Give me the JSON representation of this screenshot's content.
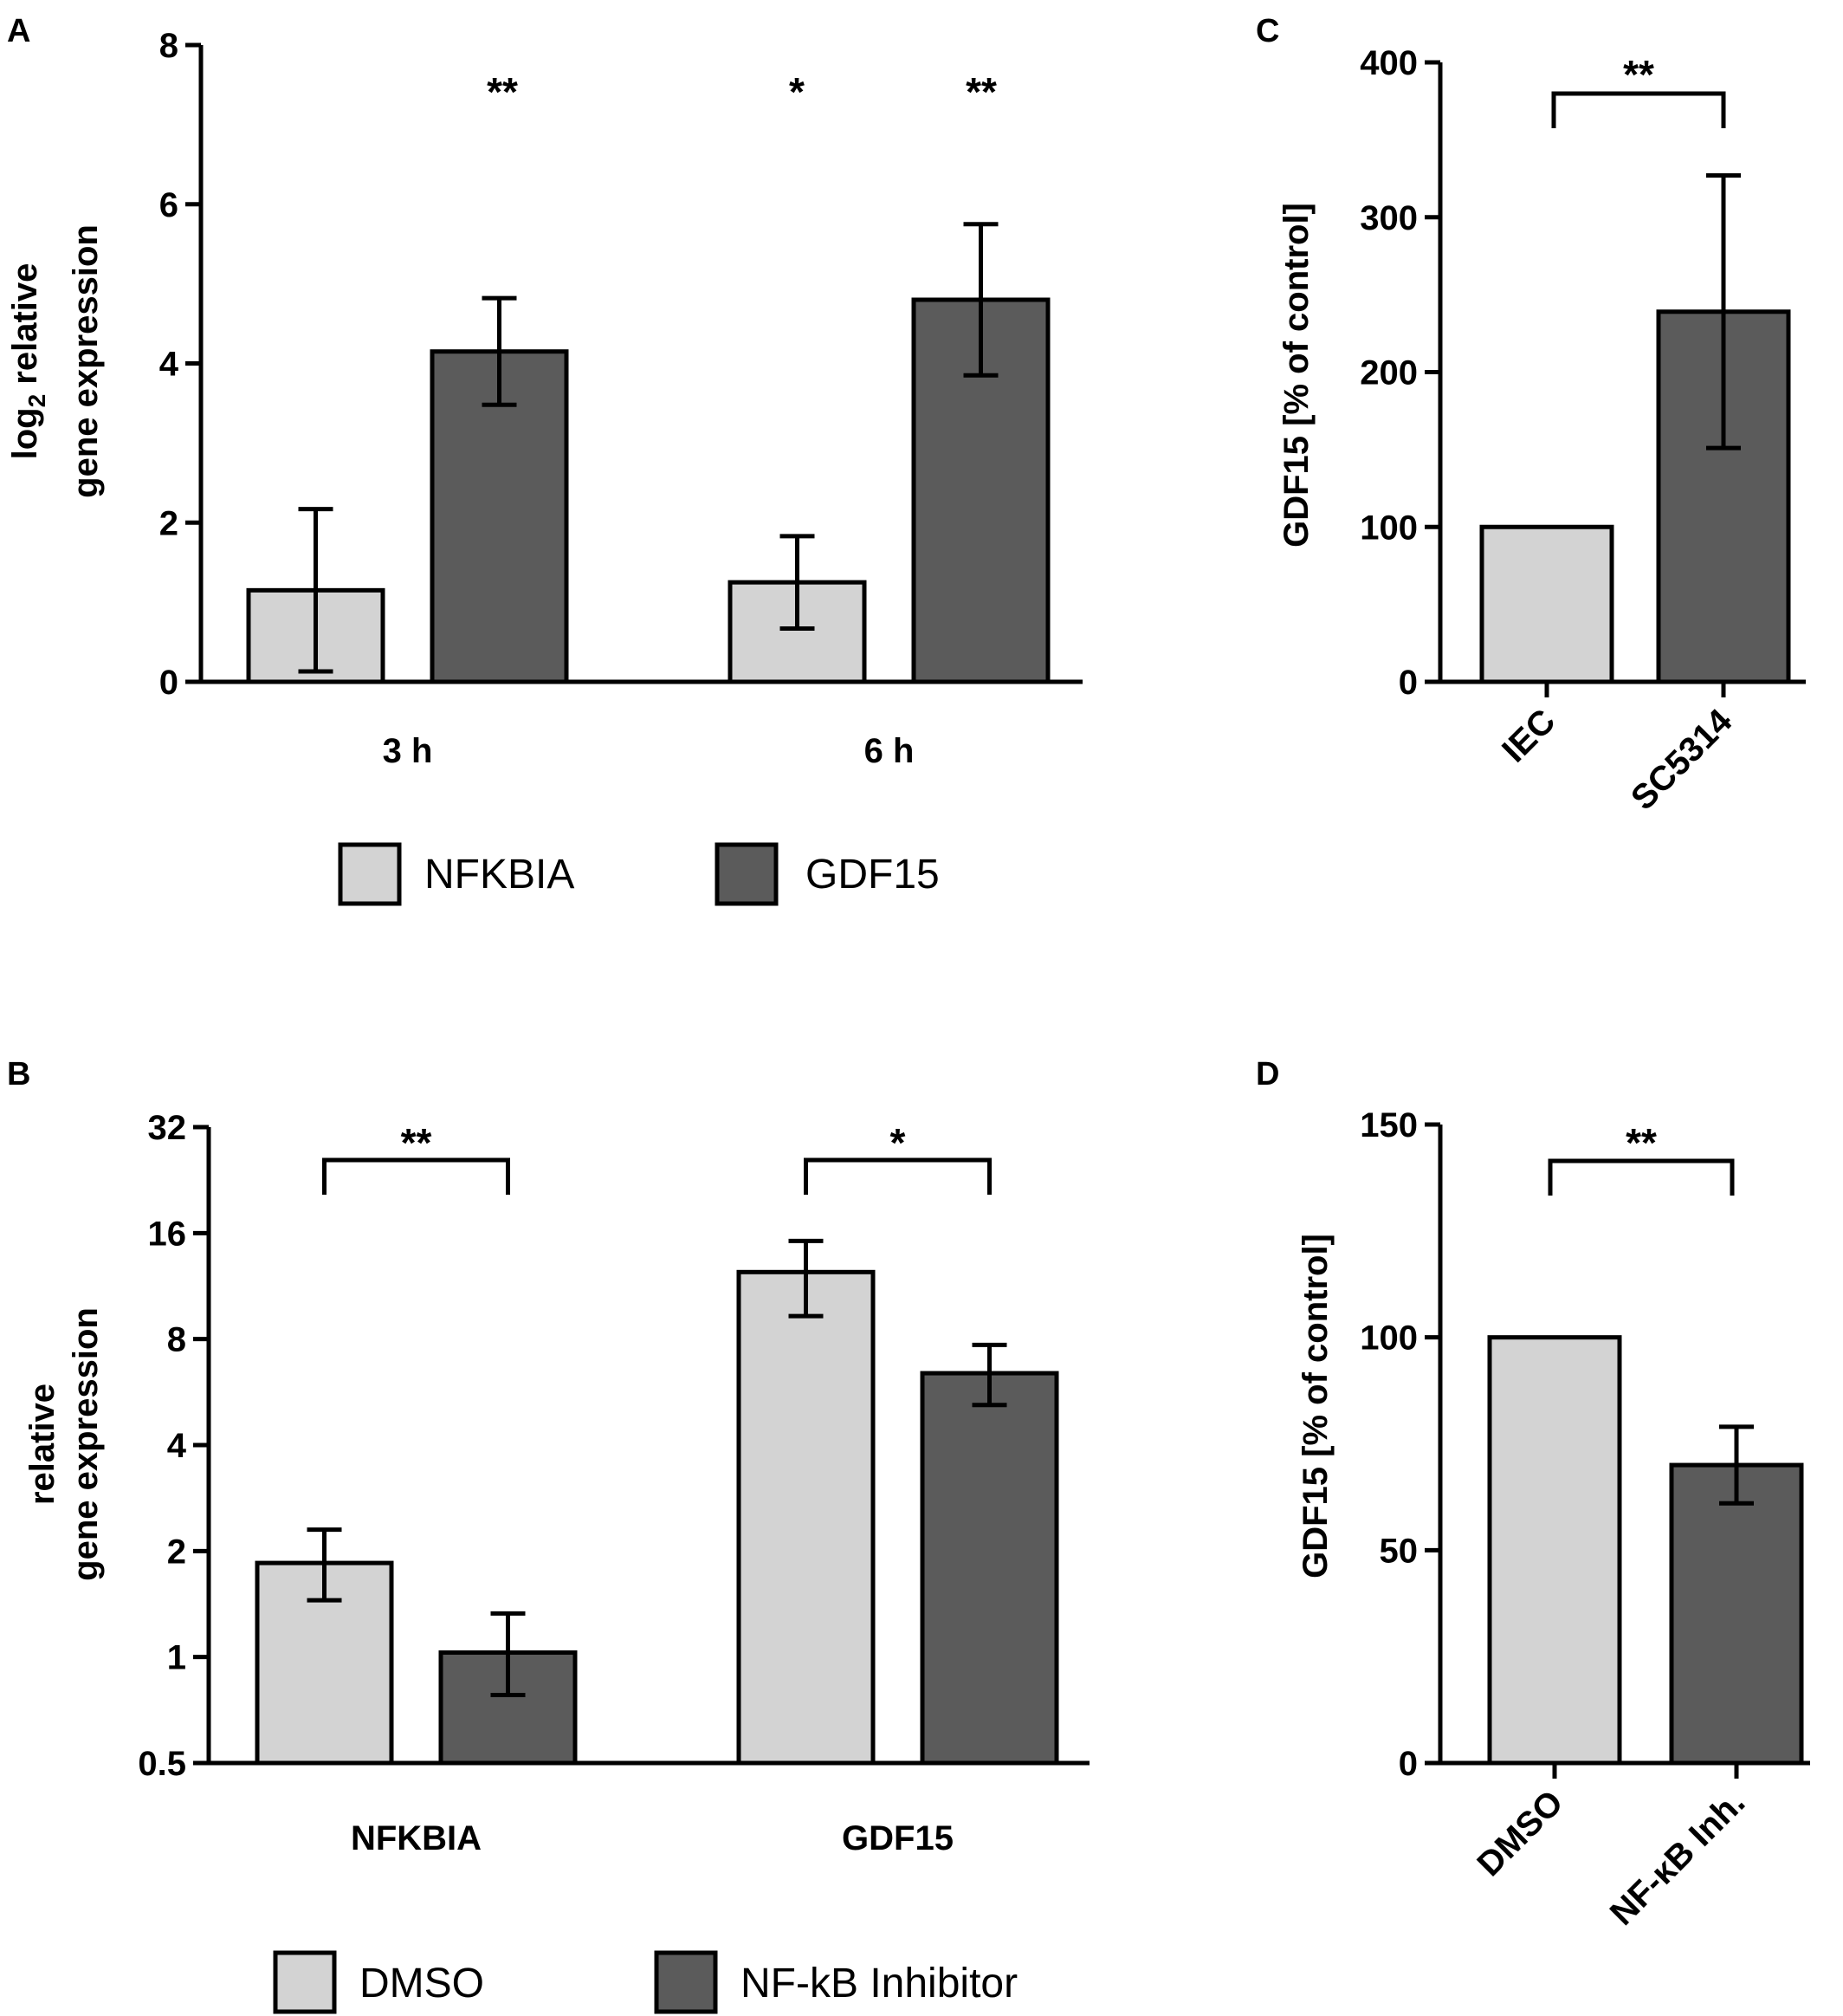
{
  "colors": {
    "light": "#d3d3d3",
    "dark": "#5b5b5b"
  },
  "chart_data": [
    {
      "panel": "A",
      "type": "bar",
      "ylabel_lines": [
        "log2 relative",
        "gene expression"
      ],
      "ylabel_main": "log",
      "ylabel_sub": "2",
      "ylabel_rest": " relative",
      "ylabel_line2": "gene expression",
      "yscale": "linear",
      "ylim": [
        0,
        8
      ],
      "yticks": [
        "0",
        "2",
        "4",
        "6",
        "8"
      ],
      "ytick_values": [
        0,
        2,
        4,
        6,
        8
      ],
      "categories": [
        "3 h",
        "6 h"
      ],
      "series": [
        {
          "name": "NFKBIA",
          "values": [
            1.15,
            1.25
          ],
          "errors": [
            1.02,
            0.58
          ]
        },
        {
          "name": "GDF15",
          "values": [
            4.15,
            4.8
          ],
          "errors": [
            0.67,
            0.95
          ]
        }
      ],
      "significance": [
        "**",
        "*",
        "**"
      ],
      "legend": [
        "NFKBIA",
        "GDF15"
      ]
    },
    {
      "panel": "B",
      "type": "bar",
      "ylabel_lines": [
        "relative",
        "gene expression"
      ],
      "yscale": "log2",
      "ylim": [
        0.5,
        32
      ],
      "yticks": [
        "0.5",
        "1",
        "2",
        "4",
        "8",
        "16",
        "32"
      ],
      "ytick_values": [
        0.5,
        1,
        2,
        4,
        8,
        16,
        32
      ],
      "categories": [
        "NFKBIA",
        "GDF15"
      ],
      "series": [
        {
          "name": "DMSO",
          "values": [
            1.85,
            12.4
          ],
          "err_low": [
            1.45,
            9.3
          ],
          "err_high": [
            2.3,
            15.2
          ]
        },
        {
          "name": "NF-kB Inhibitor",
          "values": [
            1.03,
            6.4
          ],
          "err_low": [
            0.78,
            5.2
          ],
          "err_high": [
            1.33,
            7.7
          ]
        }
      ],
      "significance": [
        "**",
        "*"
      ],
      "legend": [
        "DMSO",
        "NF-kB Inhibitor"
      ]
    },
    {
      "panel": "C",
      "type": "bar",
      "ylabel": "GDF15 [% of control]",
      "yscale": "linear",
      "ylim": [
        0,
        400
      ],
      "yticks": [
        "0",
        "100",
        "200",
        "300",
        "400"
      ],
      "ytick_values": [
        0,
        100,
        200,
        300,
        400
      ],
      "categories": [
        "IEC",
        "SC5314"
      ],
      "values": [
        100,
        239
      ],
      "errors": [
        0,
        88
      ],
      "significance": "**"
    },
    {
      "panel": "D",
      "type": "bar",
      "ylabel": "GDF15 [% of control]",
      "yscale": "linear",
      "ylim": [
        0,
        150
      ],
      "yticks": [
        "0",
        "50",
        "100",
        "150"
      ],
      "ytick_values": [
        0,
        50,
        100,
        150
      ],
      "categories": [
        "DMSO",
        "NF-κB Inh."
      ],
      "values": [
        100,
        70
      ],
      "errors": [
        0,
        9
      ],
      "significance": "**"
    }
  ]
}
